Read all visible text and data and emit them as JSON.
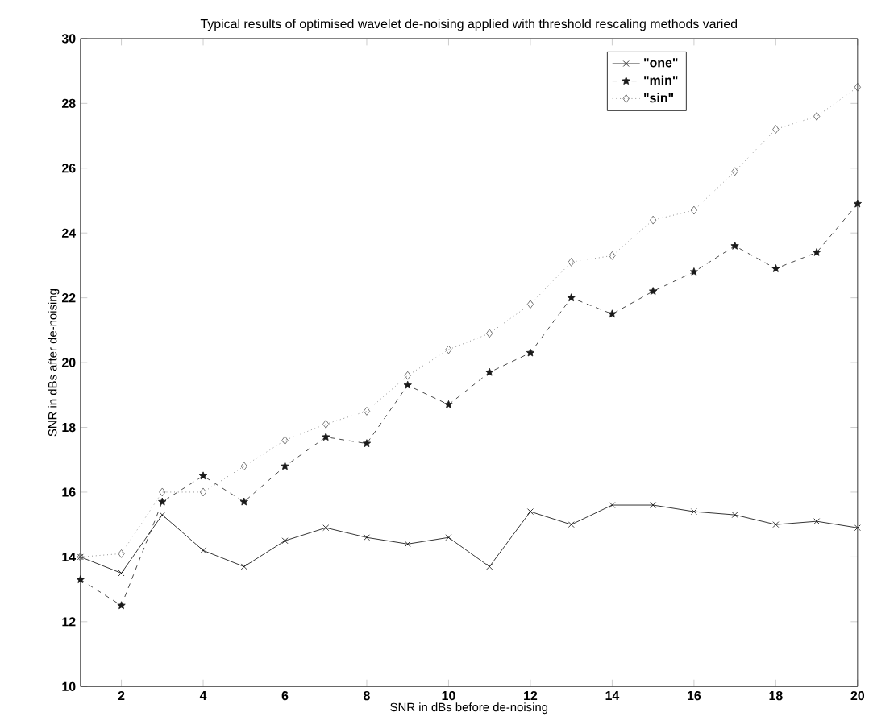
{
  "chart_data": {
    "type": "line",
    "title": "Typical results of optimised wavelet de-noising applied with threshold rescaling methods varied",
    "xlabel": "SNR in dBs before de-noising",
    "ylabel": "SNR in dBs after de-noising",
    "x": [
      1,
      2,
      3,
      4,
      5,
      6,
      7,
      8,
      9,
      10,
      11,
      12,
      13,
      14,
      15,
      16,
      17,
      18,
      19,
      20
    ],
    "series": [
      {
        "name": "\"one\"",
        "color": "#000000",
        "marker": "cross",
        "line_style": "solid",
        "values": [
          14.0,
          13.5,
          15.3,
          14.2,
          13.7,
          14.5,
          14.9,
          14.6,
          14.4,
          14.6,
          13.7,
          15.4,
          15.0,
          15.6,
          15.6,
          15.4,
          15.3,
          15.0,
          15.1,
          14.9
        ]
      },
      {
        "name": "\"min\"",
        "color": "#1a1a1a",
        "marker": "star",
        "line_style": "dashed",
        "values": [
          13.3,
          12.5,
          15.7,
          16.5,
          15.7,
          16.8,
          17.7,
          17.5,
          19.3,
          18.7,
          19.7,
          20.3,
          22.0,
          21.5,
          22.2,
          22.8,
          23.6,
          22.9,
          23.4,
          24.9
        ]
      },
      {
        "name": "\"sin\"",
        "color": "#555555",
        "marker": "diamond",
        "line_style": "dotted",
        "values": [
          14.0,
          14.1,
          16.0,
          16.0,
          16.8,
          17.6,
          18.1,
          18.5,
          19.6,
          20.4,
          20.9,
          21.8,
          23.1,
          23.3,
          24.4,
          24.7,
          25.9,
          27.2,
          27.6,
          28.5
        ]
      }
    ],
    "xlim": [
      1,
      20
    ],
    "xticks": [
      2,
      4,
      6,
      8,
      10,
      12,
      14,
      16,
      18,
      20
    ],
    "ylim": [
      10,
      30
    ],
    "yticks": [
      10,
      12,
      14,
      16,
      18,
      20,
      22,
      24,
      26,
      28,
      30
    ],
    "grid": false,
    "legend": "top right"
  }
}
